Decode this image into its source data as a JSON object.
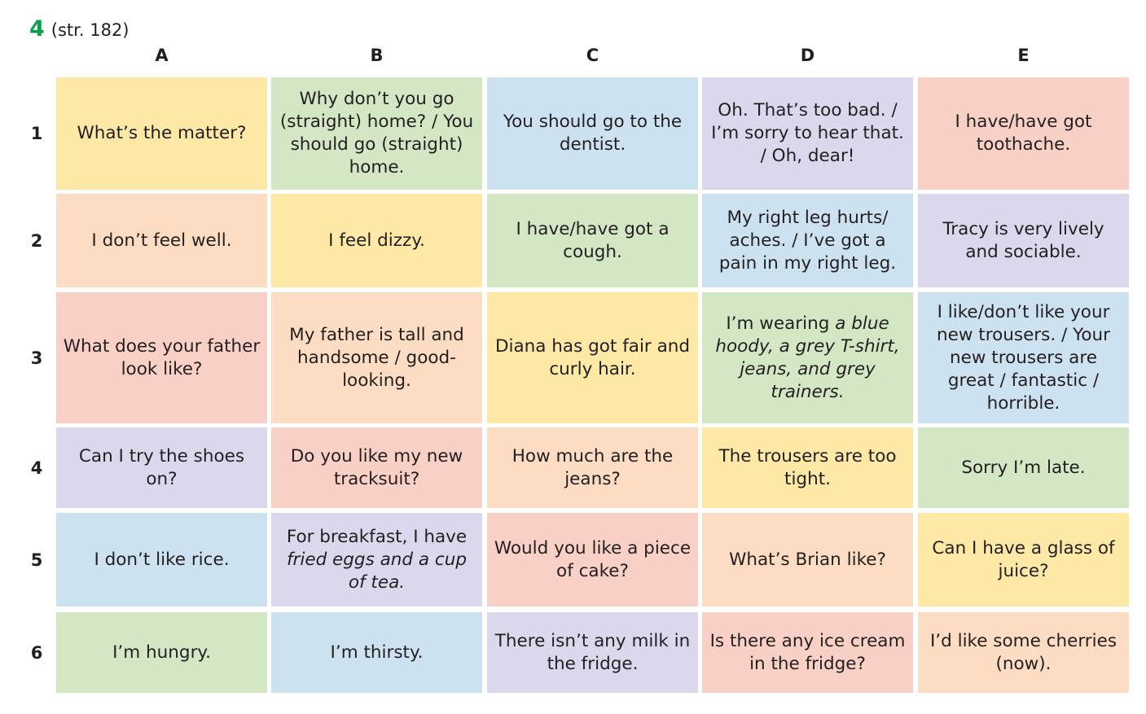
{
  "header": {
    "number": "4",
    "reference": "(str. 182)"
  },
  "columns": [
    "A",
    "B",
    "C",
    "D",
    "E"
  ],
  "rows": [
    "1",
    "2",
    "3",
    "4",
    "5",
    "6"
  ],
  "cells": {
    "r1": {
      "a": "What’s the matter?",
      "b": "Why don’t you go (straight) home? / You should go (straight) home.",
      "c": "You should go to the dentist.",
      "d": "Oh. That’s too bad. / I’m sorry to hear that. / Oh, dear!",
      "e": "I have/have got toothache."
    },
    "r2": {
      "a": "I don’t feel well.",
      "b": "I feel dizzy.",
      "c": "I have/have got a cough.",
      "d": "My right leg hurts/ aches. / I’ve got a pain in my right leg.",
      "e": "Tracy is very lively and sociable."
    },
    "r3": {
      "a": "What does your father look like?",
      "b": "My father is tall and handsome / good-looking.",
      "c": "Diana has got fair and curly hair.",
      "d_prefix": "I’m wearing ",
      "d_italic": "a blue hoody, a grey T-shirt, jeans, and grey trainers.",
      "e": "I like/don’t like your new trousers. / Your new trousers are great / fantastic / horrible."
    },
    "r4": {
      "a": "Can I try the shoes on?",
      "b": "Do you like my new tracksuit?",
      "c": "How much are the jeans?",
      "d": "The trousers are too tight.",
      "e": "Sorry I’m late."
    },
    "r5": {
      "a": "I don’t like rice.",
      "b_prefix": "For breakfast, I have ",
      "b_italic": "fried eggs and a cup of tea.",
      "c": "Would you like a piece of cake?",
      "d": "What’s Brian like?",
      "e": "Can I have a glass of juice?"
    },
    "r6": {
      "a": "I’m hungry.",
      "b": "I’m thirsty.",
      "c": "There isn’t any milk in the fridge.",
      "d": "Is there any ice cream in the fridge?",
      "e": "I’d like some cherries (now)."
    }
  },
  "colors": {
    "orange": "#fde8a6",
    "green": "#d3e7c4",
    "blue": "#cde2f1",
    "purple": "#dbd7ec",
    "pink": "#f9d0c6",
    "peach": "#fcdcc2",
    "accent": "#0aa04b"
  }
}
